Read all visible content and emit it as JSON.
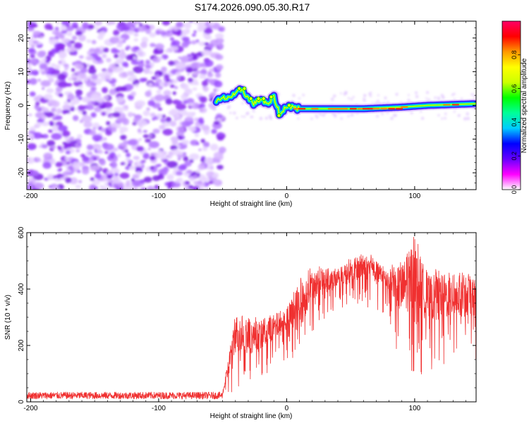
{
  "title": "S174.2026.090.05.30.R17",
  "colors": {
    "background_purple": "#a64dff",
    "trace_red": "#f03030",
    "axis": "#000000"
  },
  "chart_data": [
    {
      "type": "heatmap",
      "name": "spectrogram",
      "xlabel": "Height of straight line (km)",
      "ylabel": "Frequency (Hz)",
      "xlim": [
        -203,
        148
      ],
      "ylim": [
        -25,
        25
      ],
      "xticks": [
        -200,
        -100,
        0,
        100
      ],
      "yticks": [
        -20,
        -10,
        0,
        10,
        20
      ],
      "colorbar": {
        "label": "Normalized spectral amplitude",
        "range": [
          0,
          1
        ],
        "ticks": [
          "0.0",
          "0.2",
          "0.4",
          "0.6",
          "0.8"
        ],
        "tick_values": [
          0.0,
          0.2,
          0.4,
          0.6,
          0.8
        ],
        "colors": [
          "#ffffff",
          "#ff00ff",
          "#6600ff",
          "#0000ff",
          "#00ccff",
          "#00ff99",
          "#00ff00",
          "#ccff00",
          "#ffff00",
          "#ff9900",
          "#ff0000",
          "#ff0066"
        ]
      },
      "noise_region_x": [
        -203,
        -50
      ],
      "signal_track": [
        {
          "x": -55,
          "y": 1
        },
        {
          "x": -50,
          "y": 2
        },
        {
          "x": -45,
          "y": 2.5
        },
        {
          "x": -40,
          "y": 3
        },
        {
          "x": -35,
          "y": 5
        },
        {
          "x": -30,
          "y": 2
        },
        {
          "x": -25,
          "y": 0.5
        },
        {
          "x": -20,
          "y": 2
        },
        {
          "x": -15,
          "y": 0
        },
        {
          "x": -10,
          "y": 2.5
        },
        {
          "x": -5,
          "y": -3
        },
        {
          "x": 0,
          "y": 0
        },
        {
          "x": 10,
          "y": -1
        },
        {
          "x": 30,
          "y": -1
        },
        {
          "x": 60,
          "y": -1
        },
        {
          "x": 90,
          "y": -0.5
        },
        {
          "x": 110,
          "y": 0
        },
        {
          "x": 148,
          "y": 0.5
        }
      ]
    },
    {
      "type": "line",
      "name": "snr",
      "xlabel": "Height of straight line (km)",
      "ylabel": "SNR (10 * v/v)",
      "xlim": [
        -203,
        148
      ],
      "ylim": [
        0,
        600
      ],
      "xticks": [
        -200,
        -100,
        0,
        100
      ],
      "yticks": [
        0,
        200,
        400,
        600
      ],
      "envelope": [
        {
          "x": -203,
          "lo": 10,
          "hi": 35
        },
        {
          "x": -50,
          "lo": 10,
          "hi": 35
        },
        {
          "x": -40,
          "lo": 20,
          "hi": 330
        },
        {
          "x": -30,
          "lo": 40,
          "hi": 300
        },
        {
          "x": -20,
          "lo": 60,
          "hi": 300
        },
        {
          "x": -10,
          "lo": 120,
          "hi": 320
        },
        {
          "x": 0,
          "lo": 150,
          "hi": 350
        },
        {
          "x": 10,
          "lo": 60,
          "hi": 440
        },
        {
          "x": 20,
          "lo": 250,
          "hi": 480
        },
        {
          "x": 40,
          "lo": 330,
          "hi": 480
        },
        {
          "x": 60,
          "lo": 340,
          "hi": 540
        },
        {
          "x": 80,
          "lo": 300,
          "hi": 480
        },
        {
          "x": 90,
          "lo": 100,
          "hi": 510
        },
        {
          "x": 100,
          "lo": 80,
          "hi": 600
        },
        {
          "x": 110,
          "lo": 100,
          "hi": 470
        },
        {
          "x": 130,
          "lo": 130,
          "hi": 470
        },
        {
          "x": 148,
          "lo": 150,
          "hi": 460
        }
      ]
    }
  ]
}
